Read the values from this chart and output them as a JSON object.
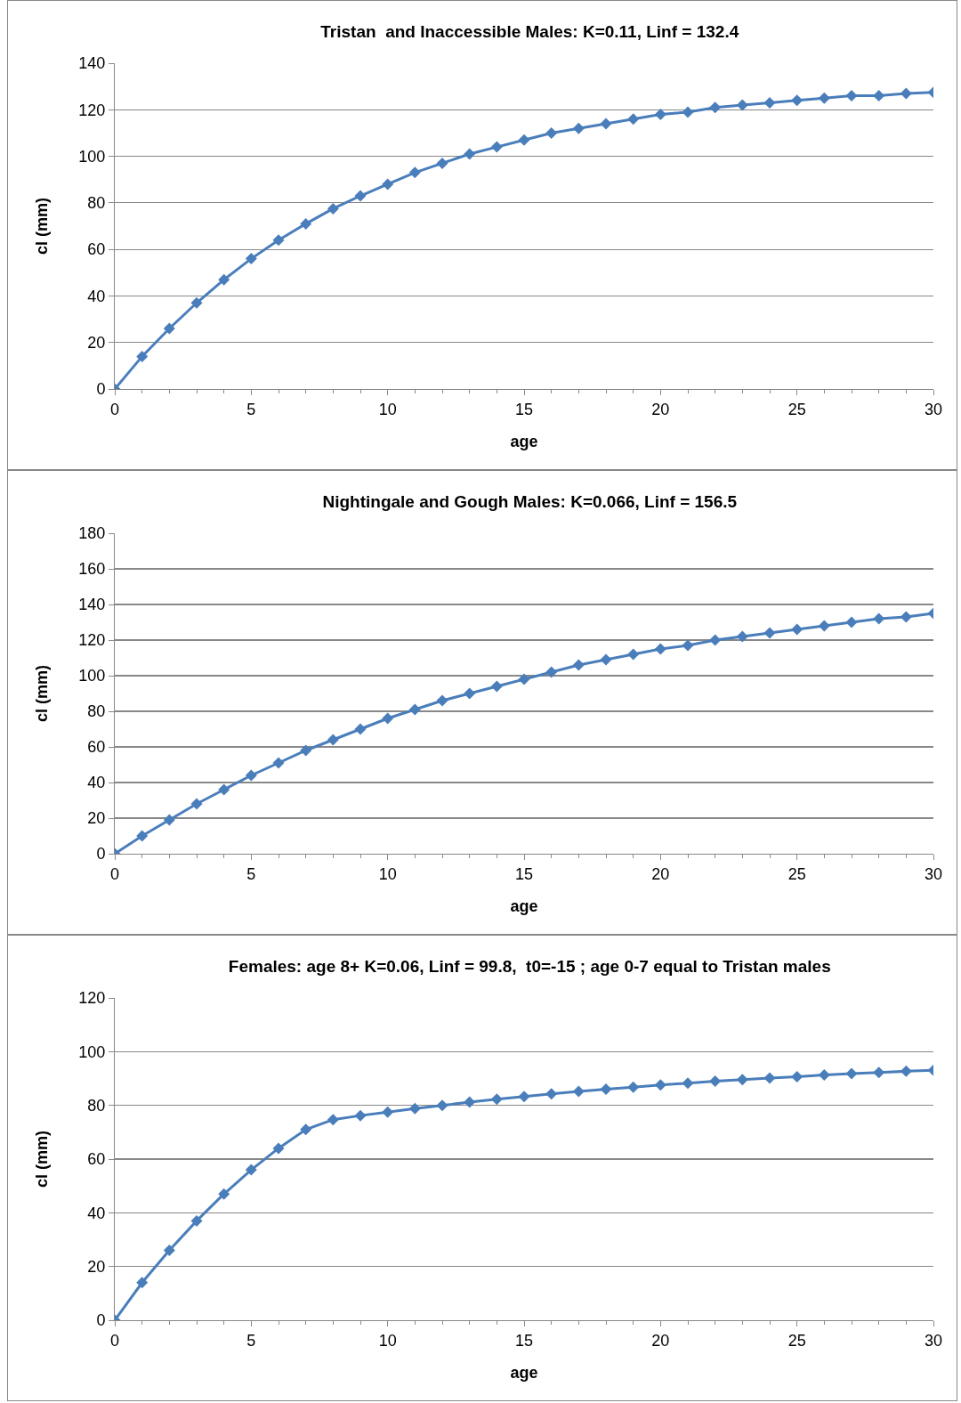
{
  "chart_data": [
    {
      "type": "line",
      "title": "Tristan  and Inaccessible Males: K=0.11, Linf = 132.4",
      "xlabel": "age",
      "ylabel": "cl (mm)",
      "x": [
        0,
        1,
        2,
        3,
        4,
        5,
        6,
        7,
        8,
        9,
        10,
        11,
        12,
        13,
        14,
        15,
        16,
        17,
        18,
        19,
        20,
        21,
        22,
        23,
        24,
        25,
        26,
        27,
        28,
        29,
        30
      ],
      "series": [
        {
          "color": "#4a7ebb",
          "values": [
            0,
            14,
            26,
            37,
            47,
            56,
            64,
            71,
            77.5,
            83,
            88,
            93,
            97,
            101,
            104,
            107,
            110,
            112,
            114,
            116,
            118,
            119,
            121,
            122,
            123,
            124,
            125,
            126,
            126,
            127,
            127.5
          ]
        }
      ],
      "xlim": [
        0,
        30
      ],
      "xticks": [
        0,
        5,
        10,
        15,
        20,
        25,
        30
      ],
      "ylim": [
        0,
        140
      ],
      "yticks": [
        0,
        20,
        40,
        60,
        80,
        100,
        120,
        140
      ],
      "grid": "y",
      "marker": "diamond",
      "line_style": "solid"
    },
    {
      "type": "line",
      "title": "Nightingale and Gough Males: K=0.066, Linf = 156.5",
      "xlabel": "age",
      "ylabel": "cl (mm)",
      "x": [
        0,
        1,
        2,
        3,
        4,
        5,
        6,
        7,
        8,
        9,
        10,
        11,
        12,
        13,
        14,
        15,
        16,
        17,
        18,
        19,
        20,
        21,
        22,
        23,
        24,
        25,
        26,
        27,
        28,
        29,
        30
      ],
      "series": [
        {
          "color": "#4a7ebb",
          "values": [
            0,
            10,
            19,
            28,
            36,
            44,
            51,
            58,
            64,
            70,
            76,
            81,
            86,
            90,
            94,
            98,
            102,
            106,
            109,
            112,
            115,
            117,
            120,
            122,
            124,
            126,
            128,
            130,
            132,
            133,
            135
          ]
        }
      ],
      "xlim": [
        0,
        30
      ],
      "xticks": [
        0,
        5,
        10,
        15,
        20,
        25,
        30
      ],
      "ylim": [
        0,
        180
      ],
      "yticks": [
        0,
        20,
        40,
        60,
        80,
        100,
        120,
        140,
        160,
        180
      ],
      "grid": "y",
      "marker": "diamond",
      "line_style": "solid"
    },
    {
      "type": "line",
      "title": "Females: age 8+ K=0.06, Linf = 99.8,  t0=-15 ; age 0-7 equal to Tristan males",
      "xlabel": "age",
      "ylabel": "cl (mm)",
      "x": [
        0,
        1,
        2,
        3,
        4,
        5,
        6,
        7,
        8,
        9,
        10,
        11,
        12,
        13,
        14,
        15,
        16,
        17,
        18,
        19,
        20,
        21,
        22,
        23,
        24,
        25,
        26,
        27,
        28,
        29,
        30
      ],
      "series": [
        {
          "color": "#4a7ebb",
          "values": [
            0,
            14,
            26,
            37,
            47,
            56,
            64,
            71,
            74.7,
            76.2,
            77.5,
            78.8,
            80,
            81.2,
            82.3,
            83.3,
            84.3,
            85.2,
            86,
            86.8,
            87.6,
            88.3,
            89,
            89.6,
            90.2,
            90.7,
            91.3,
            91.8,
            92.2,
            92.7,
            93.1
          ]
        }
      ],
      "xlim": [
        0,
        30
      ],
      "xticks": [
        0,
        5,
        10,
        15,
        20,
        25,
        30
      ],
      "ylim": [
        0,
        120
      ],
      "yticks": [
        0,
        20,
        40,
        60,
        80,
        100,
        120
      ],
      "grid": "y",
      "marker": "diamond",
      "line_style": "solid"
    }
  ]
}
